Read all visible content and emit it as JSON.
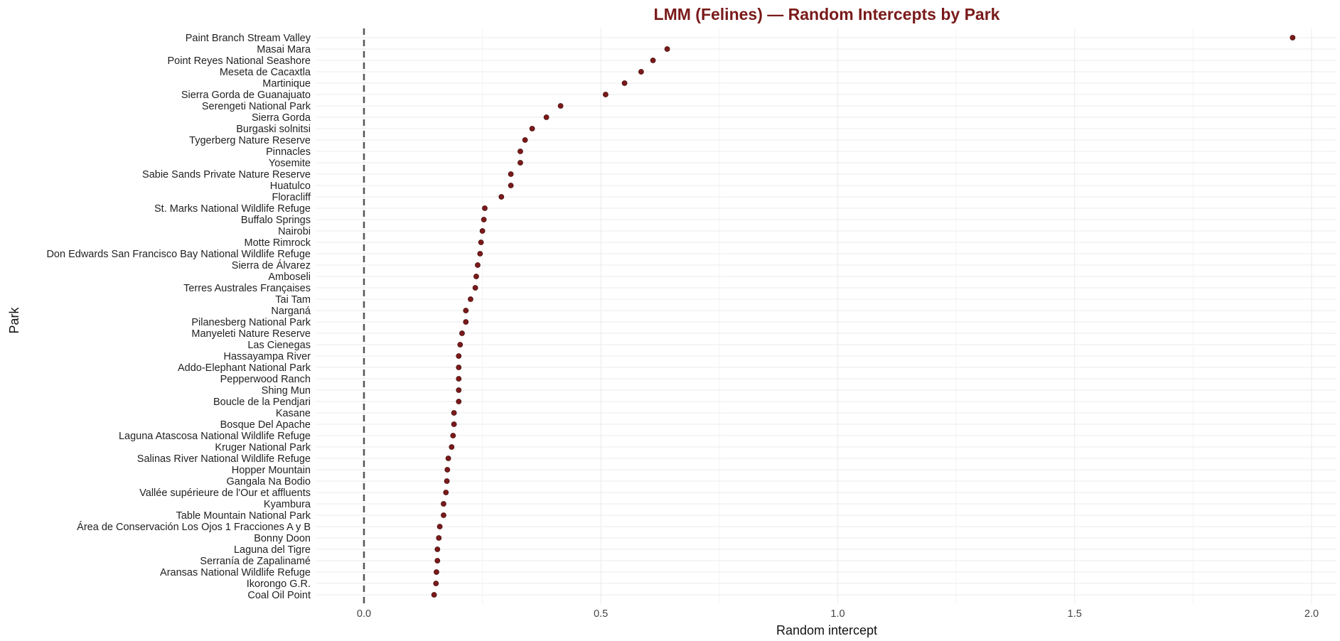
{
  "chart_data": {
    "type": "scatter",
    "title": "LMM (Felines) — Random Intercepts by Park",
    "xlabel": "Random intercept",
    "ylabel": "Park",
    "xlim": [
      -0.2,
      2.04
    ],
    "x_ticks": [
      0.0,
      0.5,
      1.0,
      1.5,
      2.0
    ],
    "x_tick_labels": [
      "0.0",
      "0.5",
      "1.0",
      "1.5",
      "2.0"
    ],
    "reference_line_x": 0,
    "grid": true,
    "legend": "none",
    "colors": {
      "title": "#7a1a1a",
      "point": "#7a1a1a",
      "reference_line": "#555555",
      "grid": "#ebebeb"
    },
    "categories": [
      "Paint Branch Stream Valley",
      "Masai Mara",
      "Point Reyes National Seashore",
      "Meseta de Cacaxtla",
      "Martinique",
      "Sierra Gorda de Guanajuato",
      "Serengeti National Park",
      "Sierra Gorda",
      "Burgaski solnitsi",
      "Tygerberg Nature Reserve",
      "Pinnacles",
      "Yosemite",
      "Sabie Sands Private Nature Reserve",
      "Huatulco",
      "Floracliff",
      "St. Marks National Wildlife Refuge",
      "Buffalo Springs",
      "Nairobi",
      "Motte Rimrock",
      "Don Edwards San Francisco Bay National Wildlife Refuge",
      "Sierra de Álvarez",
      "Amboseli",
      "Terres Australes Françaises",
      "Tai Tam",
      "Narganá",
      "Pilanesberg National Park",
      "Manyeleti Nature Reserve",
      "Las Cienegas",
      "Hassayampa River",
      "Addo-Elephant National Park",
      "Pepperwood Ranch",
      "Shing Mun",
      "Boucle de la Pendjari",
      "Kasane",
      "Bosque Del Apache",
      "Laguna Atascosa National Wildlife Refuge",
      "Kruger National Park",
      "Salinas River National Wildlife Refuge",
      "Hopper Mountain",
      "Gangala Na Bodio",
      "Vallée supérieure de l'Our et affluents",
      "Kyambura",
      "Table Mountain National Park",
      "Área de Conservación Los Ojos 1 Fracciones A y B",
      "Bonny Doon",
      "Laguna del Tigre",
      "Serranía de Zapalinamé",
      "Aransas National Wildlife Refuge",
      "Ikorongo G.R.",
      "Coal Oil Point"
    ],
    "values": [
      1.96,
      0.64,
      0.61,
      0.585,
      0.55,
      0.51,
      0.415,
      0.385,
      0.355,
      0.34,
      0.33,
      0.33,
      0.31,
      0.31,
      0.29,
      0.255,
      0.253,
      0.25,
      0.247,
      0.245,
      0.24,
      0.237,
      0.235,
      0.225,
      0.215,
      0.215,
      0.207,
      0.203,
      0.2,
      0.2,
      0.2,
      0.2,
      0.2,
      0.19,
      0.19,
      0.188,
      0.185,
      0.178,
      0.176,
      0.175,
      0.173,
      0.168,
      0.168,
      0.16,
      0.158,
      0.155,
      0.155,
      0.153,
      0.152,
      0.148
    ]
  }
}
